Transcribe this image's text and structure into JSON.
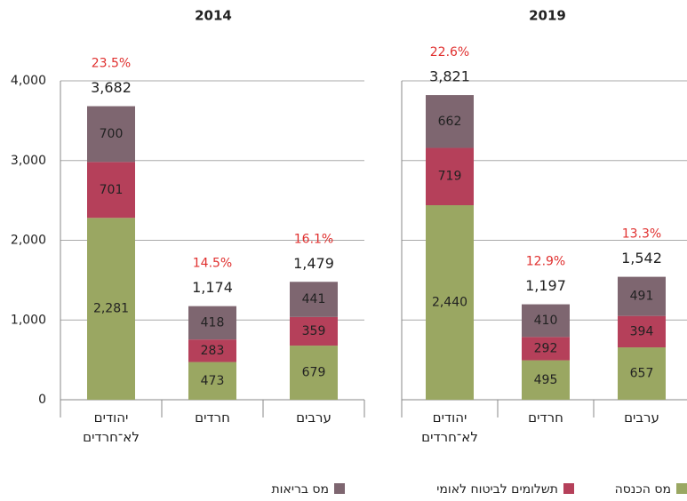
{
  "chart_data": [
    {
      "type": "bar",
      "stacked": true,
      "title": "2014",
      "categories": [
        "יהודים לא־חרדים",
        "חרדים",
        "ערבים"
      ],
      "series": [
        {
          "name": "מס הכנסה",
          "color": "#9aa762",
          "values": [
            2281,
            473,
            679
          ],
          "value_labels": [
            "2,281",
            "473",
            "679"
          ]
        },
        {
          "name": "תשלומים לביטוח לאומי",
          "color": "#b5405a",
          "values": [
            701,
            283,
            359
          ],
          "value_labels": [
            "701",
            "283",
            "359"
          ]
        },
        {
          "name": "מס בריאות",
          "color": "#7e6670",
          "values": [
            700,
            418,
            441
          ],
          "value_labels": [
            "700",
            "418",
            "441"
          ]
        }
      ],
      "totals": {
        "values": [
          3682,
          1174,
          1479
        ],
        "value_labels": [
          "3,682",
          "1,174",
          "1,479"
        ]
      },
      "shares": {
        "values": [
          23.5,
          14.5,
          16.1
        ],
        "value_labels": [
          "23.5%",
          "14.5%",
          "16.1%"
        ]
      },
      "ylim": [
        0,
        4000
      ],
      "yticks": [
        0,
        {
          "value": 1000,
          "label": "1,000"
        },
        {
          "value": 2000,
          "label": "2,000"
        },
        {
          "value": 3000,
          "label": "3,000"
        },
        {
          "value": 4000,
          "label": "4,000"
        }
      ],
      "show_ytick_labels": true,
      "grid": true
    },
    {
      "type": "bar",
      "stacked": true,
      "title": "2019",
      "categories": [
        "יהודים לא־חרדים",
        "חרדים",
        "ערבים"
      ],
      "series": [
        {
          "color": "#9aa762",
          "values": [
            2440,
            495,
            657
          ],
          "value_labels": [
            "2,440",
            "495",
            "657"
          ]
        },
        {
          "color": "#b5405a",
          "values": [
            719,
            292,
            394
          ],
          "value_labels": [
            "719",
            "292",
            "394"
          ]
        },
        {
          "color": "#7e6670",
          "values": [
            662,
            410,
            491
          ],
          "value_labels": [
            "662",
            "410",
            "491"
          ]
        }
      ],
      "totals": {
        "values": [
          3821,
          1197,
          1542
        ],
        "value_labels": [
          "3,821",
          "1,197",
          "1,542"
        ]
      },
      "shares": {
        "values": [
          22.6,
          12.9,
          13.3
        ],
        "value_labels": [
          "22.6%",
          "12.9%",
          "13.3%"
        ]
      },
      "ylim": [
        0,
        4000
      ],
      "yticks": [
        0,
        1000,
        2000,
        3000,
        4000
      ],
      "show_ytick_labels": false,
      "grid": true
    }
  ]
}
